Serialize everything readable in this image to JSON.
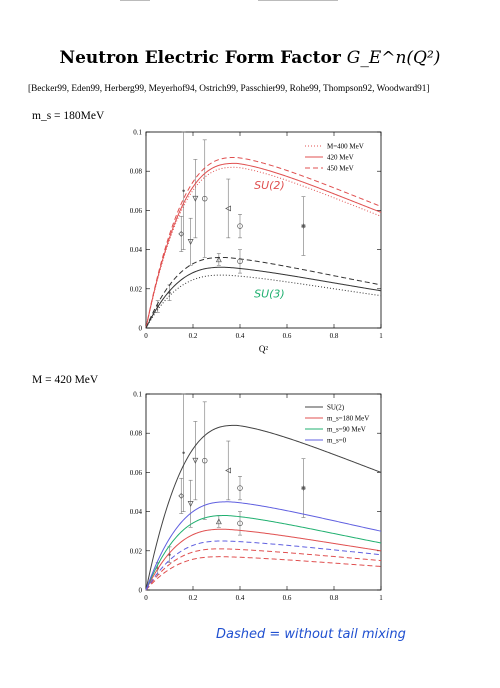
{
  "page": {
    "title_text": "Neutron Electric Form Factor ",
    "title_math": "G_E^n(Q²)",
    "refs": "[Becker99, Eden99, Herberg99, Meyerhof94, Ostrich99, Passchier99, Rohe99, Thompson92, Woodward91]",
    "param1": "m_s = 180MeV",
    "param2": "M = 420 MeV",
    "bottom_note": "Dashed = without tail mixing",
    "colors": {
      "red": "#e05050",
      "green": "#20b070",
      "blue": "#6060e0",
      "dark": "#333333",
      "note_green": "#10b060",
      "note_blue": "#2050d0"
    }
  },
  "chart_data": [
    {
      "type": "line",
      "xlabel": "Q²",
      "ylabel": "",
      "xlim": [
        0,
        1
      ],
      "ylim": [
        0,
        0.1
      ],
      "xticks": [
        "0",
        "0.2",
        "0.4",
        "0.6",
        "0.8",
        "1"
      ],
      "yticks": [
        "0",
        "0.02",
        "0.04",
        "0.06",
        "0.08",
        "0.1"
      ],
      "legend": {
        "position": "top-right",
        "entries": [
          "M=400 MeV",
          "420 MeV",
          "450 MeV"
        ]
      },
      "annotations": [
        {
          "text": "SU(2)",
          "x": 0.46,
          "y": 0.071,
          "color": "#e05050"
        },
        {
          "text": "SU(3)",
          "x": 0.46,
          "y": 0.0155,
          "color": "#20b070"
        }
      ],
      "series": [
        {
          "name": "M=400 MeV",
          "group": "SU(2)",
          "style": "dotted",
          "color": "#e05050",
          "ymax": 0.082,
          "xpeak": 0.38,
          "yend": 0.057
        },
        {
          "name": "420 MeV",
          "group": "SU(2)",
          "style": "solid",
          "color": "#e05050",
          "ymax": 0.084,
          "xpeak": 0.38,
          "yend": 0.059
        },
        {
          "name": "450 MeV",
          "group": "SU(2)",
          "style": "dashed",
          "color": "#e05050",
          "ymax": 0.087,
          "xpeak": 0.38,
          "yend": 0.062
        },
        {
          "name": "M=400 MeV",
          "group": "SU(3)",
          "style": "dotted",
          "color": "#333333",
          "ymax": 0.027,
          "xpeak": 0.33,
          "yend": 0.0165
        },
        {
          "name": "420 MeV",
          "group": "SU(3)",
          "style": "solid",
          "color": "#333333",
          "ymax": 0.031,
          "xpeak": 0.33,
          "yend": 0.019
        },
        {
          "name": "450 MeV",
          "group": "SU(3)",
          "style": "dashed",
          "color": "#333333",
          "ymax": 0.036,
          "xpeak": 0.33,
          "yend": 0.022
        }
      ],
      "points": [
        {
          "x": 0.15,
          "y": 0.048,
          "err": 0.009,
          "marker": "diamond"
        },
        {
          "x": 0.16,
          "y": 0.07,
          "err": 0.03,
          "marker": "dot"
        },
        {
          "x": 0.19,
          "y": 0.044,
          "err": 0.012,
          "marker": "triangle-down"
        },
        {
          "x": 0.21,
          "y": 0.066,
          "err": 0.02,
          "marker": "triangle-down"
        },
        {
          "x": 0.25,
          "y": 0.066,
          "err": 0.03,
          "marker": "circle"
        },
        {
          "x": 0.31,
          "y": 0.035,
          "err": 0.003,
          "marker": "triangle"
        },
        {
          "x": 0.35,
          "y": 0.061,
          "err": 0.015,
          "marker": "triangle-left"
        },
        {
          "x": 0.4,
          "y": 0.052,
          "err": 0.006,
          "marker": "circle"
        },
        {
          "x": 0.4,
          "y": 0.034,
          "err": 0.006,
          "marker": "circle"
        },
        {
          "x": 0.67,
          "y": 0.052,
          "err": 0.015,
          "marker": "star"
        },
        {
          "x": 0.05,
          "y": 0.011,
          "err": 0.003,
          "marker": "dot"
        },
        {
          "x": 0.1,
          "y": 0.018,
          "err": 0.004,
          "marker": "dot"
        }
      ]
    },
    {
      "type": "line",
      "xlabel": "",
      "ylabel": "",
      "xlim": [
        0,
        1
      ],
      "ylim": [
        0,
        0.1
      ],
      "xticks": [
        "0",
        "0.2",
        "0.4",
        "0.6",
        "0.8",
        "1"
      ],
      "yticks": [
        "0",
        "0.02",
        "0.04",
        "0.06",
        "0.08",
        "0.1"
      ],
      "legend": {
        "position": "top-right",
        "entries": [
          "SU(2)",
          "m_s=180 MeV",
          "m_s=90 MeV",
          "m_s=0"
        ]
      },
      "series": [
        {
          "name": "SU(2)",
          "style": "solid",
          "color": "#444444",
          "ymax": 0.084,
          "xpeak": 0.38,
          "yend": 0.06
        },
        {
          "name": "m_s=180 MeV",
          "style": "solid",
          "color": "#e05050",
          "ymax": 0.031,
          "xpeak": 0.33,
          "yend": 0.02
        },
        {
          "name": "m_s=90 MeV",
          "style": "solid",
          "color": "#20b070",
          "ymax": 0.038,
          "xpeak": 0.34,
          "yend": 0.024
        },
        {
          "name": "m_s=0",
          "style": "solid",
          "color": "#6060e0",
          "ymax": 0.045,
          "xpeak": 0.35,
          "yend": 0.03
        },
        {
          "name": "m_s=180 MeV",
          "style": "dashed",
          "color": "#e05050",
          "ymax": 0.017,
          "xpeak": 0.32,
          "yend": 0.012
        },
        {
          "name": "m_s=90 MeV",
          "style": "dashed",
          "color": "#e05050",
          "ymax": 0.021,
          "xpeak": 0.32,
          "yend": 0.015
        },
        {
          "name": "m_s=0",
          "style": "dashed",
          "color": "#6060e0",
          "ymax": 0.025,
          "xpeak": 0.33,
          "yend": 0.018
        }
      ],
      "points": [
        {
          "x": 0.15,
          "y": 0.048,
          "err": 0.009,
          "marker": "diamond"
        },
        {
          "x": 0.16,
          "y": 0.07,
          "err": 0.03,
          "marker": "dot"
        },
        {
          "x": 0.19,
          "y": 0.044,
          "err": 0.012,
          "marker": "triangle-down"
        },
        {
          "x": 0.21,
          "y": 0.066,
          "err": 0.02,
          "marker": "triangle-down"
        },
        {
          "x": 0.25,
          "y": 0.066,
          "err": 0.03,
          "marker": "circle"
        },
        {
          "x": 0.31,
          "y": 0.035,
          "err": 0.003,
          "marker": "triangle"
        },
        {
          "x": 0.35,
          "y": 0.061,
          "err": 0.015,
          "marker": "triangle-left"
        },
        {
          "x": 0.4,
          "y": 0.052,
          "err": 0.006,
          "marker": "circle"
        },
        {
          "x": 0.4,
          "y": 0.034,
          "err": 0.006,
          "marker": "circle"
        },
        {
          "x": 0.67,
          "y": 0.052,
          "err": 0.015,
          "marker": "star"
        },
        {
          "x": 0.05,
          "y": 0.011,
          "err": 0.003,
          "marker": "dot"
        },
        {
          "x": 0.1,
          "y": 0.018,
          "err": 0.004,
          "marker": "dot"
        }
      ]
    }
  ]
}
